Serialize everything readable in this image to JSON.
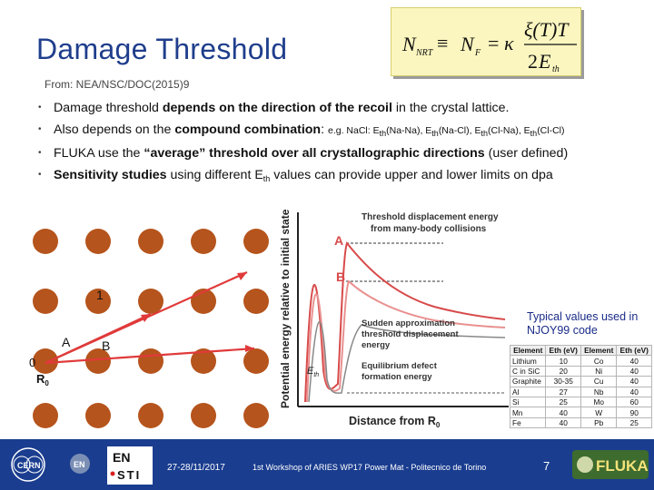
{
  "title": "Damage Threshold",
  "formula": {
    "label": "NRT formula"
  },
  "source": "From: NEA/NSC/DOC(2015)9",
  "bullets": [
    {
      "a": "Damage threshold ",
      "b": "depends on the direction of the recoil",
      "c": " in the crystal lattice."
    },
    {
      "a": "Also depends on the ",
      "b": "compound combination",
      "c": ": ",
      "ex1": "e.g. NaCl: E",
      "ex2": "(Na-Na), E",
      "ex3": "(Na-Cl), E",
      "ex4": "(Cl-Na), E",
      "ex5": "(Cl-Cl)",
      "sub": "th"
    },
    {
      "a": "FLUKA use the ",
      "b": "“average” threshold over all crystallographic directions",
      "c": " (user defined)"
    },
    {
      "b": "Sensitivity studies",
      "a": " using different E",
      "sub": "th",
      "c": " values can provide upper and lower limits on dpa"
    }
  ],
  "lattice": {
    "label_1": "1",
    "label_0": "0",
    "label_a": "A",
    "label_b": "B",
    "label_r0": "R",
    "label_r0_sub": "0"
  },
  "plot": {
    "title_top": "Threshold displacement energy",
    "title_bottom": "from many-body collisions",
    "ylabel": "Potential energy relative to initial state",
    "xlabel": "Distance from R",
    "xlabel_sub": "0",
    "curve_a": "A",
    "curve_b": "B",
    "sudden_1": "Sudden approximation",
    "sudden_2": "threshold displacement",
    "sudden_3": "energy",
    "equil_1": "Equilibrium defect",
    "equil_2": "formation energy",
    "eth_label": "E",
    "eth_sub": "th"
  },
  "table_title": "Typical values used in NJOY99 code",
  "table": {
    "headers": [
      "Element",
      "Eth (eV)",
      "Element",
      "Eth (eV)"
    ],
    "rows": [
      [
        "Lithium",
        "10",
        "Co",
        "40"
      ],
      [
        "C in SiC",
        "20",
        "Ni",
        "40"
      ],
      [
        "Graphite",
        "30-35",
        "Cu",
        "40"
      ],
      [
        "Al",
        "27",
        "Nb",
        "40"
      ],
      [
        "Si",
        "25",
        "Mo",
        "60"
      ],
      [
        "Mn",
        "40",
        "W",
        "90"
      ],
      [
        "Fe",
        "40",
        "Pb",
        "25"
      ]
    ]
  },
  "footer": {
    "cern": "CERN",
    "en": "EN",
    "sti_top": "EN",
    "sti_bottom": "STI",
    "date": "27-28/11/2017",
    "workshop": "1st Workshop of ARIES WP17 Power Mat - Politecnico de Torino",
    "page": "7",
    "fluka": "FLUKA"
  },
  "colors": {
    "title": "#1f3e8c",
    "footer": "#1a3d8f",
    "formula_bg": "#fbf6bf",
    "atom": "#b5541c",
    "arrow": "#e03a3a"
  }
}
